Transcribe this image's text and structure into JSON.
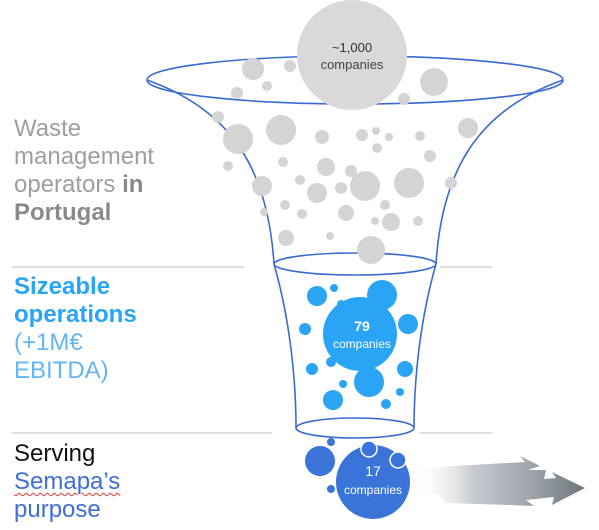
{
  "labels": {
    "waste": {
      "line1": "Waste",
      "line2": "management",
      "line3_plain": "operators ",
      "line3_strong": "in",
      "line4": "Portugal"
    },
    "sizeable": {
      "line1": "Sizeable",
      "line2": "operations",
      "line3": "(+1M€",
      "line4": "EBITDA)"
    },
    "serving": {
      "line1": "Serving",
      "line2": "Semapa’s",
      "line3": "purpose"
    }
  },
  "stages": {
    "top": {
      "count": "~1,000",
      "unit": "companies"
    },
    "middle": {
      "count": "79",
      "unit": "companies"
    },
    "bottom": {
      "count": "17",
      "unit": "companies"
    }
  },
  "colors": {
    "funnel_outline": "#3a6bd1",
    "grey_bubble": "#d4d4d4",
    "light_blue_bubble": "#2aa4f4",
    "dark_blue_bubble": "#3b74d8",
    "divider": "#bdbdbd",
    "arrow": "#8a9099"
  }
}
